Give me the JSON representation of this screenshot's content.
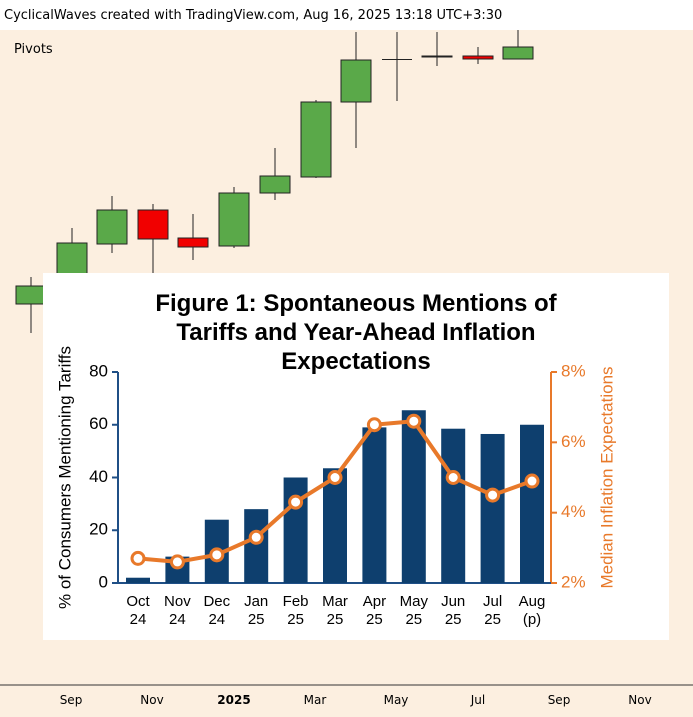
{
  "header": {
    "title": "CyclicalWaves created with TradingView.com, Aug 16, 2025 13:18 UTC+3:30"
  },
  "indicator": {
    "label": "Pivots"
  },
  "time_axis": {
    "labels": [
      "Sep",
      "Nov",
      "2025",
      "Mar",
      "May",
      "Jul",
      "Sep",
      "Nov"
    ]
  },
  "chart_data": {
    "type": "bar",
    "title": "Figure 1: Spontaneous Mentions of Tariffs and Year-Ahead Inflation Expectations",
    "ylabel": "% of Consumers Mentioning Tariffs",
    "y2label": "Median Inflation Expectations",
    "categories": [
      "Oct 24",
      "Nov 24",
      "Dec 24",
      "Jan 25",
      "Feb 25",
      "Mar 25",
      "Apr 25",
      "May 25",
      "Jun 25",
      "Jul 25",
      "Aug (p)"
    ],
    "series": [
      {
        "type": "bar",
        "color": "#0e3f6e",
        "values": [
          2,
          10,
          24,
          28,
          40,
          43.5,
          59,
          65.5,
          58.5,
          56.5,
          60
        ]
      },
      {
        "type": "line",
        "axis": "y2",
        "color": "#e8792a",
        "values": [
          2.7,
          2.6,
          2.8,
          3.3,
          4.3,
          5.0,
          6.5,
          6.6,
          5.0,
          4.5,
          4.9
        ]
      }
    ],
    "ylim": [
      0,
      80
    ],
    "yticks": [
      0,
      20,
      40,
      60,
      80
    ],
    "y2lim": [
      2,
      8
    ],
    "y2ticks": [
      {
        "value": 2,
        "label": "2%"
      },
      {
        "value": 4,
        "label": "4%"
      },
      {
        "value": 6,
        "label": "6%"
      },
      {
        "value": 8,
        "label": "8%"
      }
    ]
  }
}
